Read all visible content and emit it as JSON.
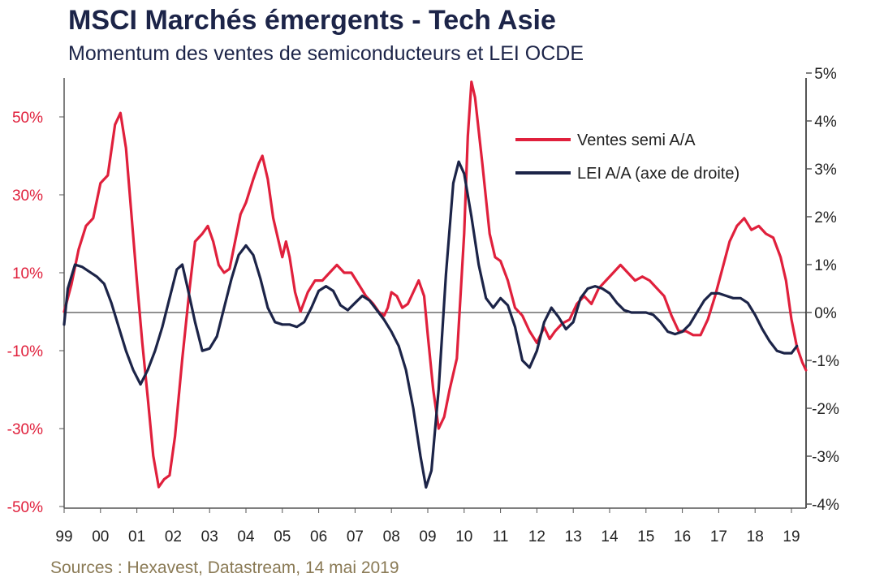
{
  "title": "MSCI Marchés émergents - Tech Asie",
  "subtitle": "Momentum des ventes de semiconducteurs et LEI OCDE",
  "source": "Sources : Hexavest, Datastream, 14 mai 2019",
  "colors": {
    "semi": "#e0203c",
    "lei": "#1c2448",
    "axis": "#555555"
  },
  "chart_data": {
    "type": "line",
    "x_tick_labels": [
      "99",
      "00",
      "01",
      "02",
      "03",
      "04",
      "05",
      "06",
      "07",
      "08",
      "09",
      "10",
      "11",
      "12",
      "13",
      "14",
      "15",
      "16",
      "17",
      "18",
      "19"
    ],
    "y_left": {
      "ticks": [
        "50%",
        "30%",
        "10%",
        "-10%",
        "-30%",
        "-50%"
      ],
      "tick_values": [
        50,
        30,
        10,
        -10,
        -30,
        -50
      ],
      "ylim": [
        -50,
        60
      ]
    },
    "y_right": {
      "ticks": [
        "5%",
        "4%",
        "3%",
        "2%",
        "1%",
        "0%",
        "-1%",
        "-2%",
        "-3%",
        "-4%"
      ],
      "tick_values": [
        5,
        4,
        3,
        2,
        1,
        0,
        -1,
        -2,
        -3,
        -4
      ],
      "ylim": [
        -4,
        5
      ]
    },
    "series": [
      {
        "name": "Ventes semi A/A",
        "axis": "left",
        "points": [
          [
            1999.0,
            0
          ],
          [
            1999.2,
            7
          ],
          [
            1999.4,
            16
          ],
          [
            1999.6,
            22
          ],
          [
            1999.8,
            24
          ],
          [
            2000.0,
            33
          ],
          [
            2000.2,
            35
          ],
          [
            2000.4,
            48
          ],
          [
            2000.55,
            51
          ],
          [
            2000.7,
            42
          ],
          [
            2000.85,
            25
          ],
          [
            2001.0,
            8
          ],
          [
            2001.15,
            -8
          ],
          [
            2001.3,
            -22
          ],
          [
            2001.45,
            -37
          ],
          [
            2001.6,
            -45
          ],
          [
            2001.75,
            -43
          ],
          [
            2001.9,
            -42
          ],
          [
            2002.05,
            -32
          ],
          [
            2002.25,
            -12
          ],
          [
            2002.45,
            6
          ],
          [
            2002.6,
            18
          ],
          [
            2002.8,
            20
          ],
          [
            2002.95,
            22
          ],
          [
            2003.1,
            18
          ],
          [
            2003.25,
            12
          ],
          [
            2003.4,
            10
          ],
          [
            2003.55,
            11
          ],
          [
            2003.7,
            18
          ],
          [
            2003.85,
            25
          ],
          [
            2004.0,
            28
          ],
          [
            2004.2,
            34
          ],
          [
            2004.35,
            38
          ],
          [
            2004.45,
            40
          ],
          [
            2004.6,
            34
          ],
          [
            2004.75,
            24
          ],
          [
            2004.9,
            18
          ],
          [
            2005.0,
            14
          ],
          [
            2005.1,
            18
          ],
          [
            2005.2,
            14
          ],
          [
            2005.35,
            5
          ],
          [
            2005.5,
            0
          ],
          [
            2005.7,
            5
          ],
          [
            2005.9,
            8
          ],
          [
            2006.1,
            8
          ],
          [
            2006.3,
            10
          ],
          [
            2006.5,
            12
          ],
          [
            2006.7,
            10
          ],
          [
            2006.9,
            10
          ],
          [
            2007.1,
            7
          ],
          [
            2007.3,
            4
          ],
          [
            2007.5,
            2
          ],
          [
            2007.65,
            0
          ],
          [
            2007.8,
            -1
          ],
          [
            2007.9,
            1
          ],
          [
            2008.0,
            5
          ],
          [
            2008.15,
            4
          ],
          [
            2008.3,
            1
          ],
          [
            2008.45,
            2
          ],
          [
            2008.6,
            5
          ],
          [
            2008.75,
            8
          ],
          [
            2008.9,
            4
          ],
          [
            2009.0,
            -6
          ],
          [
            2009.15,
            -20
          ],
          [
            2009.3,
            -30
          ],
          [
            2009.45,
            -27
          ],
          [
            2009.6,
            -20
          ],
          [
            2009.8,
            -12
          ],
          [
            2010.0,
            20
          ],
          [
            2010.1,
            45
          ],
          [
            2010.2,
            59
          ],
          [
            2010.3,
            55
          ],
          [
            2010.5,
            38
          ],
          [
            2010.7,
            20
          ],
          [
            2010.85,
            14
          ],
          [
            2011.0,
            13
          ],
          [
            2011.2,
            8
          ],
          [
            2011.4,
            1
          ],
          [
            2011.6,
            -1
          ],
          [
            2011.8,
            -5
          ],
          [
            2012.0,
            -8
          ],
          [
            2012.2,
            -4
          ],
          [
            2012.35,
            -7
          ],
          [
            2012.5,
            -5
          ],
          [
            2012.7,
            -3
          ],
          [
            2012.9,
            -2
          ],
          [
            2013.1,
            2
          ],
          [
            2013.3,
            4
          ],
          [
            2013.5,
            2
          ],
          [
            2013.7,
            6
          ],
          [
            2013.9,
            8
          ],
          [
            2014.1,
            10
          ],
          [
            2014.3,
            12
          ],
          [
            2014.5,
            10
          ],
          [
            2014.7,
            8
          ],
          [
            2014.9,
            9
          ],
          [
            2015.1,
            8
          ],
          [
            2015.3,
            6
          ],
          [
            2015.5,
            4
          ],
          [
            2015.7,
            -1
          ],
          [
            2015.9,
            -5
          ],
          [
            2016.1,
            -5
          ],
          [
            2016.3,
            -6
          ],
          [
            2016.5,
            -6
          ],
          [
            2016.7,
            -2
          ],
          [
            2016.9,
            4
          ],
          [
            2017.1,
            11
          ],
          [
            2017.3,
            18
          ],
          [
            2017.5,
            22
          ],
          [
            2017.7,
            24
          ],
          [
            2017.9,
            21
          ],
          [
            2018.1,
            22
          ],
          [
            2018.3,
            20
          ],
          [
            2018.5,
            19
          ],
          [
            2018.7,
            14
          ],
          [
            2018.85,
            8
          ],
          [
            2019.0,
            -2
          ],
          [
            2019.15,
            -9
          ],
          [
            2019.3,
            -13
          ],
          [
            2019.4,
            -15
          ]
        ]
      },
      {
        "name": "LEI A/A (axe de droite)",
        "axis": "right",
        "points": [
          [
            1999.0,
            -0.25
          ],
          [
            1999.1,
            0.5
          ],
          [
            1999.3,
            1.0
          ],
          [
            1999.5,
            0.95
          ],
          [
            1999.7,
            0.85
          ],
          [
            1999.9,
            0.75
          ],
          [
            2000.1,
            0.6
          ],
          [
            2000.3,
            0.2
          ],
          [
            2000.5,
            -0.3
          ],
          [
            2000.7,
            -0.8
          ],
          [
            2000.9,
            -1.2
          ],
          [
            2001.1,
            -1.5
          ],
          [
            2001.3,
            -1.2
          ],
          [
            2001.5,
            -0.8
          ],
          [
            2001.7,
            -0.3
          ],
          [
            2001.9,
            0.3
          ],
          [
            2002.1,
            0.9
          ],
          [
            2002.25,
            1.0
          ],
          [
            2002.4,
            0.5
          ],
          [
            2002.6,
            -0.2
          ],
          [
            2002.8,
            -0.8
          ],
          [
            2003.0,
            -0.75
          ],
          [
            2003.2,
            -0.5
          ],
          [
            2003.4,
            0.1
          ],
          [
            2003.6,
            0.7
          ],
          [
            2003.8,
            1.2
          ],
          [
            2004.0,
            1.4
          ],
          [
            2004.2,
            1.2
          ],
          [
            2004.4,
            0.7
          ],
          [
            2004.6,
            0.1
          ],
          [
            2004.8,
            -0.2
          ],
          [
            2005.0,
            -0.25
          ],
          [
            2005.2,
            -0.25
          ],
          [
            2005.4,
            -0.3
          ],
          [
            2005.6,
            -0.2
          ],
          [
            2005.8,
            0.1
          ],
          [
            2006.0,
            0.45
          ],
          [
            2006.2,
            0.55
          ],
          [
            2006.4,
            0.45
          ],
          [
            2006.6,
            0.15
          ],
          [
            2006.8,
            0.05
          ],
          [
            2007.0,
            0.2
          ],
          [
            2007.2,
            0.35
          ],
          [
            2007.4,
            0.25
          ],
          [
            2007.6,
            0.05
          ],
          [
            2007.8,
            -0.15
          ],
          [
            2008.0,
            -0.4
          ],
          [
            2008.2,
            -0.7
          ],
          [
            2008.4,
            -1.2
          ],
          [
            2008.6,
            -2.0
          ],
          [
            2008.8,
            -3.0
          ],
          [
            2008.95,
            -3.65
          ],
          [
            2009.1,
            -3.3
          ],
          [
            2009.3,
            -1.6
          ],
          [
            2009.5,
            0.8
          ],
          [
            2009.7,
            2.7
          ],
          [
            2009.85,
            3.15
          ],
          [
            2010.0,
            2.9
          ],
          [
            2010.2,
            2.0
          ],
          [
            2010.4,
            1.0
          ],
          [
            2010.6,
            0.3
          ],
          [
            2010.8,
            0.1
          ],
          [
            2011.0,
            0.3
          ],
          [
            2011.2,
            0.15
          ],
          [
            2011.4,
            -0.3
          ],
          [
            2011.6,
            -1.0
          ],
          [
            2011.8,
            -1.15
          ],
          [
            2012.0,
            -0.8
          ],
          [
            2012.2,
            -0.2
          ],
          [
            2012.4,
            0.1
          ],
          [
            2012.6,
            -0.1
          ],
          [
            2012.8,
            -0.35
          ],
          [
            2013.0,
            -0.2
          ],
          [
            2013.2,
            0.3
          ],
          [
            2013.4,
            0.5
          ],
          [
            2013.6,
            0.55
          ],
          [
            2013.8,
            0.5
          ],
          [
            2014.0,
            0.4
          ],
          [
            2014.2,
            0.2
          ],
          [
            2014.4,
            0.05
          ],
          [
            2014.6,
            0.0
          ],
          [
            2014.8,
            0.0
          ],
          [
            2015.0,
            0.0
          ],
          [
            2015.2,
            -0.05
          ],
          [
            2015.4,
            -0.2
          ],
          [
            2015.6,
            -0.4
          ],
          [
            2015.8,
            -0.45
          ],
          [
            2016.0,
            -0.4
          ],
          [
            2016.2,
            -0.25
          ],
          [
            2016.4,
            0.0
          ],
          [
            2016.6,
            0.25
          ],
          [
            2016.8,
            0.4
          ],
          [
            2017.0,
            0.4
          ],
          [
            2017.2,
            0.35
          ],
          [
            2017.4,
            0.3
          ],
          [
            2017.6,
            0.3
          ],
          [
            2017.8,
            0.2
          ],
          [
            2018.0,
            -0.05
          ],
          [
            2018.2,
            -0.35
          ],
          [
            2018.4,
            -0.6
          ],
          [
            2018.6,
            -0.8
          ],
          [
            2018.8,
            -0.85
          ],
          [
            2019.0,
            -0.85
          ],
          [
            2019.15,
            -0.7
          ]
        ]
      }
    ],
    "legend": {
      "placement": "top-right"
    },
    "grid": false
  }
}
